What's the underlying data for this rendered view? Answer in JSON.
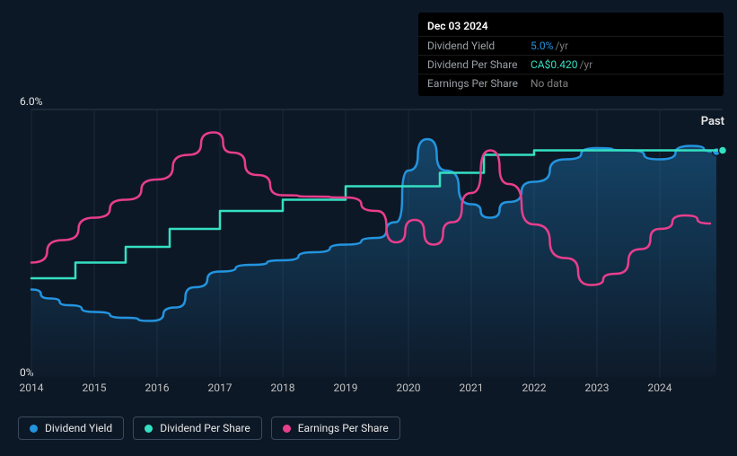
{
  "tooltip": {
    "date": "Dec 03 2024",
    "rows": [
      {
        "label": "Dividend Yield",
        "value": "5.0%",
        "unit": "/yr",
        "value_color": "#2394df"
      },
      {
        "label": "Dividend Per Share",
        "value": "CA$0.420",
        "unit": "/yr",
        "value_color": "#34e0c2"
      },
      {
        "label": "Earnings Per Share",
        "value": "No data",
        "unit": "",
        "value_color": "#808080"
      }
    ]
  },
  "past_label": "Past",
  "y_axis": {
    "min_label": "0%",
    "max_label": "6.0%",
    "min": 0,
    "max": 6
  },
  "x_axis": {
    "labels": [
      "2014",
      "2015",
      "2016",
      "2017",
      "2018",
      "2019",
      "2020",
      "2021",
      "2022",
      "2023",
      "2024"
    ],
    "min": 2014,
    "max": 2025
  },
  "chart": {
    "background_color": "#0d1826",
    "plot_top_border": "#2a3a4c",
    "grid_color": "#1a2838",
    "area_gradient_top": "rgba(35,148,223,0.35)",
    "area_gradient_bottom": "rgba(35,148,223,0.02)",
    "series": [
      {
        "name": "Dividend Yield",
        "color": "#2394df",
        "legend_dot": "#2394df",
        "width": 2.5,
        "area": true,
        "marker_end": true,
        "data": [
          [
            2014.0,
            1.95
          ],
          [
            2014.3,
            1.75
          ],
          [
            2014.6,
            1.6
          ],
          [
            2015.0,
            1.45
          ],
          [
            2015.5,
            1.32
          ],
          [
            2015.9,
            1.25
          ],
          [
            2016.3,
            1.55
          ],
          [
            2016.6,
            2.0
          ],
          [
            2017.0,
            2.35
          ],
          [
            2017.5,
            2.5
          ],
          [
            2018.0,
            2.6
          ],
          [
            2018.5,
            2.78
          ],
          [
            2019.0,
            2.95
          ],
          [
            2019.5,
            3.1
          ],
          [
            2019.8,
            3.45
          ],
          [
            2020.0,
            4.6
          ],
          [
            2020.3,
            5.3
          ],
          [
            2020.6,
            4.6
          ],
          [
            2021.0,
            3.85
          ],
          [
            2021.3,
            3.55
          ],
          [
            2021.6,
            3.9
          ],
          [
            2022.0,
            4.35
          ],
          [
            2022.5,
            4.85
          ],
          [
            2023.0,
            5.1
          ],
          [
            2023.5,
            5.05
          ],
          [
            2024.0,
            4.85
          ],
          [
            2024.5,
            5.15
          ],
          [
            2024.9,
            5.02
          ]
        ]
      },
      {
        "name": "Dividend Per Share",
        "color": "#34e0c2",
        "legend_dot": "#34e0c2",
        "width": 2.5,
        "area": false,
        "marker_end": true,
        "step": true,
        "data": [
          [
            2014.0,
            2.2
          ],
          [
            2014.7,
            2.2
          ],
          [
            2014.7,
            2.55
          ],
          [
            2015.5,
            2.55
          ],
          [
            2015.5,
            2.9
          ],
          [
            2016.2,
            2.9
          ],
          [
            2016.2,
            3.3
          ],
          [
            2017.0,
            3.3
          ],
          [
            2017.0,
            3.7
          ],
          [
            2018.0,
            3.7
          ],
          [
            2018.0,
            3.95
          ],
          [
            2019.0,
            3.95
          ],
          [
            2019.0,
            4.25
          ],
          [
            2020.5,
            4.25
          ],
          [
            2020.5,
            4.55
          ],
          [
            2021.2,
            4.55
          ],
          [
            2021.2,
            4.95
          ],
          [
            2022.0,
            4.95
          ],
          [
            2022.0,
            5.05
          ],
          [
            2025.0,
            5.05
          ]
        ]
      },
      {
        "name": "Earnings Per Share",
        "color": "#e83e8c",
        "legend_dot": "#e83e8c",
        "width": 2.5,
        "area": false,
        "marker_end": false,
        "data": [
          [
            2014.0,
            2.55
          ],
          [
            2014.5,
            3.05
          ],
          [
            2015.0,
            3.55
          ],
          [
            2015.5,
            3.95
          ],
          [
            2016.0,
            4.4
          ],
          [
            2016.5,
            4.95
          ],
          [
            2016.9,
            5.45
          ],
          [
            2017.2,
            5.0
          ],
          [
            2017.6,
            4.5
          ],
          [
            2018.0,
            4.05
          ],
          [
            2018.5,
            4.02
          ],
          [
            2019.0,
            4.0
          ],
          [
            2019.5,
            3.7
          ],
          [
            2019.8,
            3.0
          ],
          [
            2020.1,
            3.5
          ],
          [
            2020.4,
            2.95
          ],
          [
            2020.7,
            3.45
          ],
          [
            2021.0,
            4.1
          ],
          [
            2021.3,
            5.05
          ],
          [
            2021.6,
            4.3
          ],
          [
            2022.0,
            3.4
          ],
          [
            2022.5,
            2.65
          ],
          [
            2022.9,
            2.05
          ],
          [
            2023.3,
            2.3
          ],
          [
            2023.7,
            2.85
          ],
          [
            2024.0,
            3.3
          ],
          [
            2024.4,
            3.6
          ],
          [
            2024.8,
            3.42
          ]
        ]
      }
    ]
  },
  "legend": [
    {
      "label": "Dividend Yield",
      "color": "#2394df"
    },
    {
      "label": "Dividend Per Share",
      "color": "#34e0c2"
    },
    {
      "label": "Earnings Per Share",
      "color": "#e83e8c"
    }
  ]
}
